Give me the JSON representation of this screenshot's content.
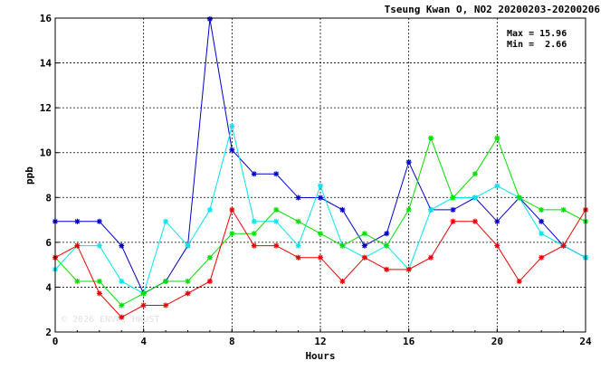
{
  "chart_data": {
    "type": "line",
    "title": "Tseung Kwan O, NO2 20200203-20200206",
    "xlabel": "Hours",
    "ylabel": "ppb",
    "xlim": [
      0,
      24
    ],
    "ylim": [
      2,
      16
    ],
    "xticks": [
      0,
      4,
      8,
      12,
      16,
      20,
      24
    ],
    "yticks": [
      2,
      4,
      6,
      8,
      10,
      12,
      14,
      16
    ],
    "grid": true,
    "stats": {
      "max_label": "Max = 15.96",
      "min_label": "Min =  2.66"
    },
    "watermark": "© 2026  ENVF, HKUST",
    "x": [
      0,
      1,
      2,
      3,
      4,
      5,
      6,
      7,
      8,
      9,
      10,
      11,
      12,
      13,
      14,
      15,
      16,
      17,
      18,
      19,
      20,
      21,
      22,
      23,
      24
    ],
    "series": [
      {
        "color": "#0000cc",
        "values": [
          6.93,
          6.93,
          6.93,
          5.85,
          3.72,
          4.26,
          5.85,
          15.96,
          10.12,
          9.05,
          9.05,
          7.99,
          7.99,
          7.45,
          5.85,
          6.39,
          9.58,
          7.45,
          7.45,
          7.99,
          6.93,
          7.99,
          6.93,
          5.85,
          5.32
        ]
      },
      {
        "color": "#00e5ee",
        "values": [
          4.79,
          5.85,
          5.85,
          4.26,
          3.72,
          6.93,
          5.85,
          7.45,
          11.18,
          6.93,
          6.93,
          5.85,
          8.52,
          5.85,
          5.32,
          5.85,
          4.79,
          7.45,
          7.99,
          7.99,
          8.52,
          7.99,
          6.39,
          5.85,
          5.32
        ]
      },
      {
        "color": "#00e000",
        "values": [
          5.32,
          4.26,
          4.26,
          3.19,
          3.72,
          4.26,
          4.26,
          5.32,
          6.39,
          6.39,
          7.45,
          6.93,
          6.39,
          5.85,
          6.39,
          5.85,
          7.45,
          10.65,
          7.99,
          9.05,
          10.65,
          7.99,
          7.45,
          7.45,
          6.93
        ]
      },
      {
        "color": "#ee0000",
        "values": [
          5.32,
          5.85,
          3.72,
          2.66,
          3.19,
          3.19,
          3.72,
          4.26,
          7.45,
          5.85,
          5.85,
          5.32,
          5.32,
          4.26,
          5.32,
          4.79,
          4.79,
          5.32,
          6.93,
          6.93,
          5.85,
          4.26,
          5.32,
          5.85,
          7.45
        ]
      }
    ]
  }
}
